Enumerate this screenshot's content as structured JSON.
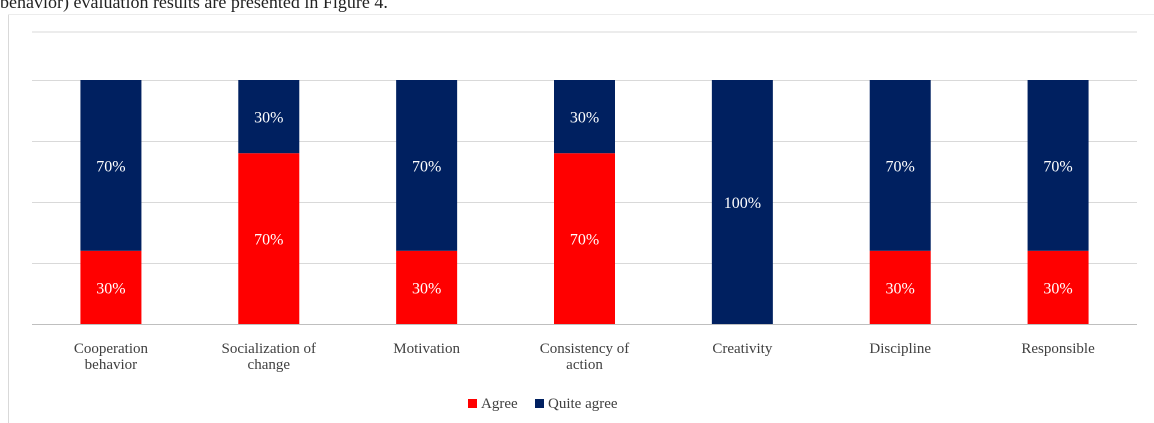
{
  "page": {
    "caption_fragment": "behavior) evaluation results are presented in Figure 4."
  },
  "colors": {
    "agree": "#FF0000",
    "quite_agree": "#002060",
    "grid": "#d9d9d9",
    "axis": "#bfbfbf"
  },
  "chart_data": {
    "type": "bar",
    "stacked": true,
    "percent_stacked": true,
    "categories": [
      "Cooperation behavior",
      "Socialization of change",
      "Motivation",
      "Consistency of action",
      "Creativity",
      "Discipline",
      "Responsible"
    ],
    "category_lines": [
      [
        "Cooperation",
        "behavior"
      ],
      [
        "Socialization of",
        "change"
      ],
      [
        "Motivation"
      ],
      [
        "Consistency of",
        "action"
      ],
      [
        "Creativity"
      ],
      [
        "Discipline"
      ],
      [
        "Responsible"
      ]
    ],
    "series": [
      {
        "name": "Agree",
        "color": "#FF0000",
        "values": [
          30,
          70,
          30,
          70,
          0,
          30,
          30
        ],
        "labels": [
          "30%",
          "70%",
          "30%",
          "70%",
          "",
          "30%",
          "30%"
        ]
      },
      {
        "name": "Quite agree",
        "color": "#002060",
        "values": [
          70,
          30,
          70,
          30,
          100,
          70,
          70
        ],
        "labels": [
          "70%",
          "30%",
          "70%",
          "30%",
          "100%",
          "70%",
          "70%"
        ]
      }
    ],
    "ylim": [
      0,
      100
    ],
    "grid": true,
    "legend_position": "bottom"
  }
}
